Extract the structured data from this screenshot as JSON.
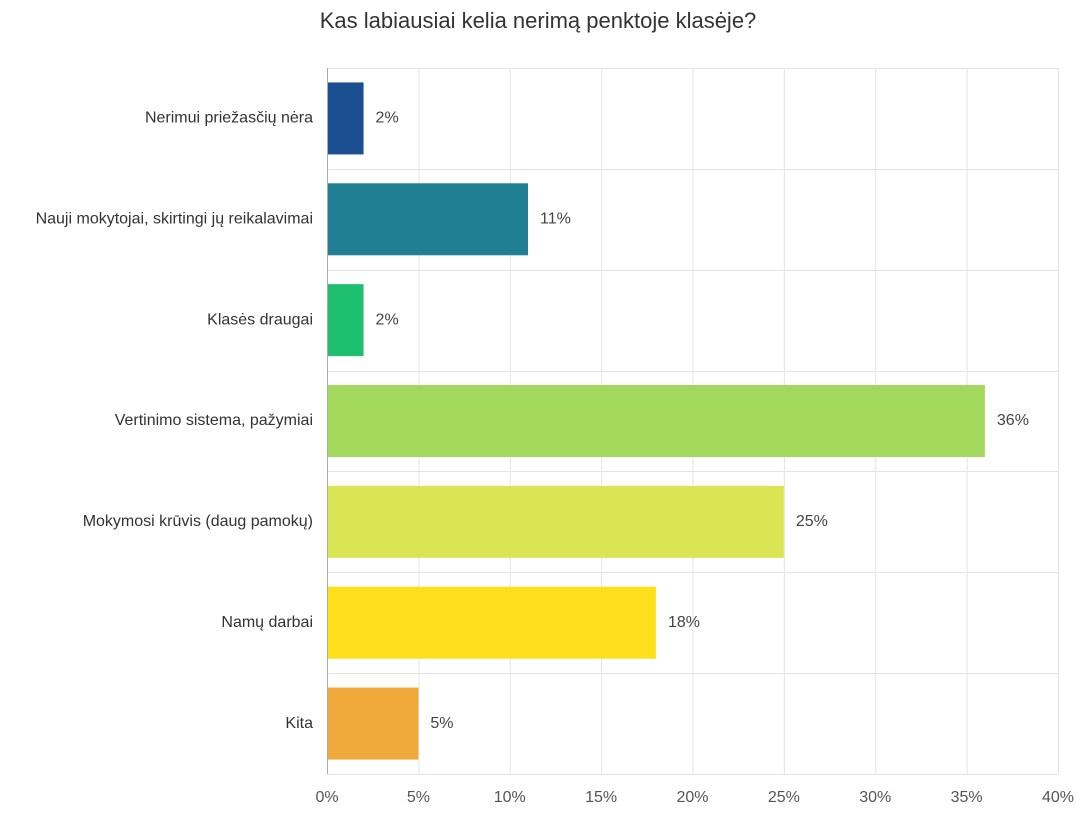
{
  "chart_data": {
    "type": "bar",
    "orientation": "horizontal",
    "title": "Kas labiausiai kelia nerimą penktoje klasėje?",
    "categories": [
      "Nerimui priežasčių nėra",
      "Nauji mokytojai, skirtingi jų reikalavimai",
      "Klasės draugai",
      "Vertinimo sistema, pažymiai",
      "Mokymosi krūvis (daug pamokų)",
      "Namų darbai",
      "Kita"
    ],
    "values": [
      2,
      11,
      2,
      36,
      25,
      18,
      5
    ],
    "value_labels": [
      "2%",
      "11%",
      "2%",
      "36%",
      "25%",
      "18%",
      "5%"
    ],
    "colors": [
      "#1a4f91",
      "#207f93",
      "#1fbf70",
      "#a2d95c",
      "#d9e552",
      "#fde01a",
      "#efa93b"
    ],
    "xlim": [
      0,
      40
    ],
    "x_ticks": [
      0,
      5,
      10,
      15,
      20,
      25,
      30,
      35,
      40
    ],
    "x_tick_labels": [
      "0%",
      "5%",
      "10%",
      "15%",
      "20%",
      "25%",
      "30%",
      "35%",
      "40%"
    ],
    "grid": true,
    "legend": "none"
  }
}
